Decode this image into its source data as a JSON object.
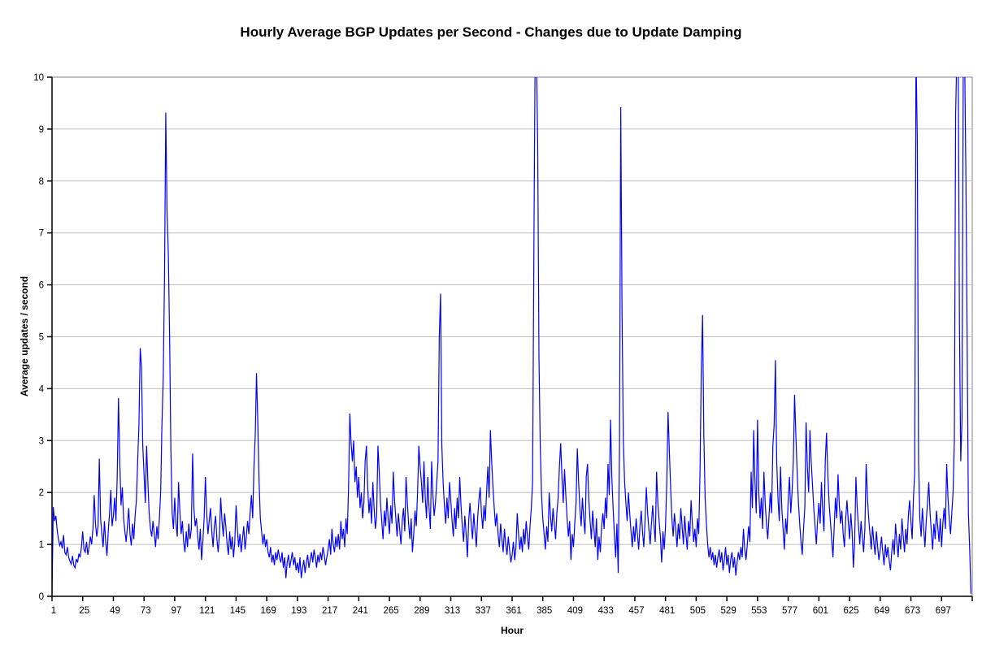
{
  "title": "Hourly Average BGP Updates per Second - Changes due to Update Damping",
  "chart_data": {
    "type": "line",
    "title": "Hourly Average BGP Updates per Second - Changes due to Update Damping",
    "xlabel": "Hour",
    "ylabel": "Average updates / second",
    "ylim": [
      0,
      10
    ],
    "y_tick_labels": [
      "0",
      "1",
      "2",
      "3",
      "4",
      "5",
      "6",
      "7",
      "8",
      "9",
      "10"
    ],
    "x_start": 1,
    "x_tick_step": 24,
    "x_tick_labels": [
      "1",
      "25",
      "49",
      "73",
      "97",
      "121",
      "145",
      "169",
      "193",
      "217",
      "241",
      "265",
      "289",
      "313",
      "337",
      "361",
      "385",
      "409",
      "433",
      "457",
      "481",
      "505",
      "529",
      "553",
      "577",
      "601",
      "625",
      "649",
      "673",
      "697"
    ],
    "grid": true,
    "legend": "none",
    "line_color": "#0000FF",
    "gridline_color": "#C0C0C0",
    "plot_border_color": "#808080",
    "axis_color": "#000000",
    "background_color": "#FFFFFF",
    "values": [
      0.05,
      1.72,
      1.45,
      1.55,
      1.28,
      1.1,
      0.98,
      1.05,
      0.92,
      1.18,
      0.85,
      0.8,
      0.95,
      0.75,
      0.68,
      0.62,
      0.78,
      0.6,
      0.55,
      0.72,
      0.65,
      0.82,
      0.75,
      0.95,
      1.25,
      0.9,
      0.85,
      1.05,
      0.8,
      0.95,
      1.15,
      1.0,
      1.3,
      1.95,
      1.4,
      1.15,
      1.35,
      2.65,
      1.5,
      1.2,
      0.95,
      1.45,
      1.05,
      0.78,
      1.25,
      1.6,
      2.05,
      1.35,
      1.55,
      1.9,
      1.45,
      2.3,
      3.82,
      2.6,
      1.75,
      2.1,
      1.5,
      1.25,
      1.05,
      1.35,
      1.7,
      1.2,
      0.98,
      1.4,
      1.1,
      1.55,
      1.85,
      2.6,
      3.3,
      4.78,
      4.4,
      2.9,
      2.35,
      1.8,
      2.9,
      2.2,
      1.6,
      1.3,
      1.15,
      1.45,
      1.2,
      0.95,
      1.35,
      1.1,
      1.5,
      2.0,
      3.3,
      4.2,
      6.1,
      9.32,
      7.4,
      6.6,
      5.0,
      2.8,
      1.6,
      1.3,
      1.9,
      1.4,
      1.15,
      2.2,
      1.65,
      1.2,
      1.45,
      1.05,
      0.85,
      1.25,
      0.95,
      1.4,
      1.1,
      1.3,
      2.75,
      1.7,
      1.35,
      1.5,
      1.15,
      0.9,
      1.3,
      0.7,
      1.05,
      1.5,
      2.3,
      1.6,
      1.2,
      1.45,
      1.7,
      1.25,
      0.95,
      1.35,
      1.55,
      1.1,
      0.85,
      1.2,
      1.9,
      1.45,
      1.15,
      1.6,
      1.35,
      1.0,
      0.8,
      1.25,
      0.9,
      1.15,
      0.75,
      1.05,
      1.75,
      1.3,
      0.95,
      1.2,
      0.85,
      1.1,
      1.35,
      0.9,
      1.15,
      1.45,
      1.2,
      1.6,
      1.95,
      1.5,
      2.5,
      3.1,
      4.3,
      3.35,
      2.2,
      1.5,
      1.25,
      1.0,
      1.2,
      0.95,
      1.1,
      0.85,
      0.75,
      0.95,
      0.65,
      0.8,
      0.6,
      0.85,
      0.7,
      0.9,
      0.75,
      0.65,
      0.85,
      0.55,
      0.75,
      0.35,
      0.65,
      0.8,
      0.55,
      0.7,
      0.85,
      0.6,
      0.75,
      0.5,
      0.65,
      0.45,
      0.75,
      0.35,
      0.55,
      0.7,
      0.45,
      0.65,
      0.8,
      0.55,
      0.7,
      0.85,
      0.65,
      0.9,
      0.75,
      0.55,
      0.8,
      0.65,
      0.85,
      0.7,
      0.95,
      0.8,
      0.6,
      0.75,
      0.9,
      1.1,
      0.8,
      1.3,
      1.0,
      0.85,
      1.15,
      0.95,
      1.2,
      0.9,
      1.45,
      1.1,
      1.3,
      0.95,
      1.5,
      1.2,
      2.1,
      3.52,
      2.95,
      2.6,
      3.0,
      2.2,
      2.5,
      1.9,
      2.3,
      1.7,
      2.0,
      1.5,
      1.8,
      2.6,
      2.9,
      2.1,
      1.6,
      1.9,
      1.4,
      2.2,
      1.7,
      1.3,
      1.55,
      2.9,
      2.4,
      1.8,
      1.45,
      1.1,
      1.65,
      1.35,
      1.9,
      1.5,
      1.2,
      1.75,
      1.4,
      2.4,
      1.85,
      1.5,
      1.15,
      1.6,
      1.3,
      1.0,
      1.45,
      1.7,
      1.25,
      2.3,
      1.8,
      1.4,
      1.1,
      1.5,
      0.85,
      1.2,
      1.65,
      1.35,
      2.0,
      2.9,
      2.5,
      2.2,
      1.8,
      2.6,
      1.9,
      1.5,
      2.3,
      1.7,
      1.3,
      2.6,
      1.95,
      1.55,
      1.8,
      2.2,
      2.6,
      5.0,
      5.83,
      2.9,
      2.2,
      1.75,
      1.4,
      1.9,
      1.5,
      2.2,
      1.85,
      1.45,
      1.15,
      1.7,
      1.3,
      1.9,
      1.5,
      2.3,
      1.75,
      1.35,
      1.05,
      1.55,
      1.2,
      0.75,
      1.45,
      1.8,
      1.4,
      1.1,
      1.6,
      1.25,
      0.95,
      1.5,
      1.85,
      2.1,
      1.6,
      1.3,
      1.75,
      1.45,
      2.0,
      2.5,
      1.9,
      3.2,
      2.6,
      2.1,
      1.7,
      1.35,
      1.6,
      1.2,
      0.95,
      1.4,
      1.1,
      0.85,
      1.3,
      1.0,
      0.8,
      1.15,
      0.9,
      0.65,
      0.8,
      1.05,
      0.7,
      0.95,
      1.6,
      1.2,
      0.9,
      1.15,
      0.85,
      1.3,
      1.0,
      1.45,
      1.15,
      0.9,
      1.35,
      1.7,
      2.2,
      6.6,
      10.5,
      10.5,
      8.7,
      4.6,
      2.9,
      1.95,
      1.5,
      1.2,
      0.9,
      1.35,
      1.05,
      2.0,
      1.55,
      1.25,
      1.7,
      1.4,
      1.1,
      1.6,
      1.9,
      2.5,
      2.95,
      2.3,
      1.8,
      2.45,
      1.95,
      1.5,
      1.15,
      1.45,
      0.7,
      1.2,
      0.95,
      1.4,
      1.8,
      2.85,
      2.2,
      1.7,
      1.35,
      1.9,
      1.5,
      1.2,
      2.3,
      2.55,
      1.85,
      1.45,
      1.1,
      1.65,
      1.3,
      0.95,
      1.5,
      0.7,
      1.15,
      0.85,
      1.35,
      1.6,
      1.3,
      1.9,
      1.5,
      2.55,
      1.95,
      3.4,
      2.3,
      1.7,
      1.2,
      0.75,
      1.4,
      0.45,
      2.9,
      9.42,
      5.5,
      3.0,
      2.2,
      1.8,
      1.45,
      2.0,
      1.6,
      1.25,
      0.95,
      1.35,
      1.05,
      1.5,
      1.2,
      0.9,
      1.35,
      1.65,
      1.25,
      0.95,
      1.45,
      2.1,
      1.6,
      1.3,
      1.0,
      1.4,
      1.75,
      1.35,
      1.05,
      2.4,
      1.8,
      1.45,
      1.15,
      0.65,
      1.25,
      0.9,
      1.35,
      2.2,
      3.55,
      2.8,
      2.1,
      1.5,
      1.15,
      1.6,
      1.3,
      0.95,
      1.4,
      1.1,
      1.7,
      1.35,
      1.0,
      1.55,
      1.2,
      0.9,
      1.45,
      1.15,
      1.85,
      1.4,
      1.05,
      1.3,
      0.95,
      1.5,
      1.2,
      2.4,
      4.35,
      5.42,
      3.1,
      1.9,
      1.4,
      1.0,
      0.75,
      0.95,
      0.7,
      0.85,
      0.6,
      0.8,
      0.55,
      0.75,
      0.9,
      0.65,
      0.85,
      0.5,
      0.7,
      0.95,
      0.6,
      0.8,
      0.45,
      0.7,
      0.85,
      0.55,
      0.75,
      0.4,
      0.65,
      0.85,
      0.7,
      0.95,
      0.75,
      1.3,
      0.9,
      0.7,
      1.0,
      1.35,
      1.05,
      2.4,
      1.7,
      3.2,
      2.2,
      1.6,
      3.4,
      2.0,
      1.5,
      1.9,
      1.3,
      2.4,
      1.8,
      1.4,
      1.1,
      1.55,
      2.0,
      1.6,
      2.9,
      3.3,
      4.55,
      2.6,
      1.9,
      1.45,
      2.5,
      1.7,
      1.3,
      0.9,
      1.5,
      1.2,
      1.85,
      2.3,
      1.6,
      2.0,
      2.6,
      3.88,
      3.1,
      2.4,
      1.8,
      1.4,
      1.05,
      0.8,
      1.3,
      1.7,
      3.35,
      2.5,
      2.0,
      3.2,
      2.6,
      2.15,
      1.7,
      1.35,
      1.0,
      1.45,
      1.8,
      1.4,
      2.2,
      1.65,
      1.25,
      2.6,
      3.15,
      2.35,
      1.8,
      1.45,
      1.1,
      0.75,
      1.35,
      1.9,
      1.5,
      2.35,
      1.75,
      1.4,
      1.65,
      1.2,
      0.95,
      1.5,
      1.85,
      1.45,
      1.1,
      1.6,
      1.25,
      0.55,
      1.05,
      2.3,
      1.7,
      1.35,
      1.0,
      1.45,
      1.15,
      0.85,
      1.3,
      2.55,
      1.9,
      1.5,
      1.2,
      0.9,
      1.35,
      1.05,
      0.8,
      1.25,
      0.95,
      0.7,
      0.9,
      1.15,
      0.85,
      0.6,
      1.0,
      0.75,
      0.95,
      0.7,
      0.5,
      0.85,
      1.1,
      0.8,
      1.4,
      1.05,
      0.75,
      1.2,
      0.9,
      1.5,
      1.15,
      0.85,
      1.3,
      1.0,
      1.55,
      1.85,
      1.45,
      1.1,
      1.9,
      2.4,
      10.5,
      8.8,
      2.6,
      1.5,
      1.15,
      1.7,
      1.3,
      0.95,
      1.45,
      1.8,
      2.2,
      1.6,
      1.25,
      0.9,
      1.4,
      1.1,
      1.65,
      1.35,
      1.05,
      1.5,
      0.95,
      1.4,
      1.7,
      1.3,
      2.55,
      1.9,
      1.5,
      1.2,
      1.6,
      2.0,
      3.0,
      9.3,
      10.5,
      10.5,
      5.2,
      2.6,
      3.4,
      10.5,
      10.5,
      8.2,
      5.0,
      1.6,
      0.9,
      0.05
    ]
  }
}
